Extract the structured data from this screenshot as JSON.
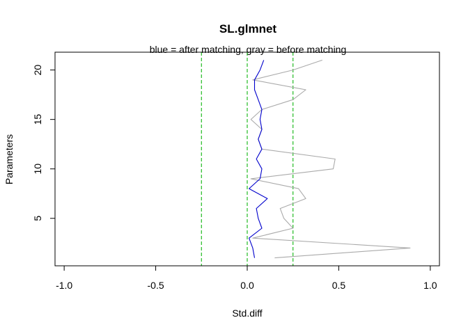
{
  "chart_data": {
    "type": "line",
    "title": "SL.glmnet",
    "subtitle": "blue = after matching, gray = before matching",
    "xlabel": "Std.diff",
    "ylabel": "Parameters",
    "xlim": [
      -1.05,
      1.05
    ],
    "ylim": [
      0.2,
      21.8
    ],
    "xticks": [
      -1.0,
      -0.5,
      0.0,
      0.5,
      1.0
    ],
    "xtick_labels": [
      "-1.0",
      "-0.5",
      "0.0",
      "0.5",
      "1.0"
    ],
    "yticks": [
      5,
      10,
      15,
      20
    ],
    "ytick_labels": [
      "5",
      "10",
      "15",
      "20"
    ],
    "reference_lines": [
      -0.25,
      0,
      0.25
    ],
    "grid": false,
    "series": [
      {
        "color": "#aaaaaa",
        "y": [
          1,
          2,
          3,
          4,
          5,
          6,
          7,
          8,
          9,
          10,
          11,
          12,
          13,
          14,
          15,
          16,
          17,
          18,
          19,
          20,
          21
        ],
        "x": [
          0.15,
          0.89,
          0.03,
          0.25,
          0.2,
          0.18,
          0.32,
          0.28,
          0.02,
          0.47,
          0.48,
          0.08,
          0.06,
          0.08,
          0.02,
          0.08,
          0.25,
          0.32,
          0.03,
          0.25,
          0.41
        ]
      },
      {
        "color": "#0000cc",
        "y": [
          1,
          2,
          3,
          4,
          5,
          6,
          7,
          8,
          9,
          10,
          11,
          12,
          13,
          14,
          15,
          16,
          17,
          18,
          19,
          20,
          21
        ],
        "x": [
          0.04,
          0.03,
          0.01,
          0.08,
          0.06,
          0.05,
          0.11,
          0.01,
          0.07,
          0.08,
          0.05,
          0.08,
          0.06,
          0.08,
          0.07,
          0.08,
          0.06,
          0.04,
          0.04,
          0.07,
          0.09
        ]
      }
    ]
  }
}
